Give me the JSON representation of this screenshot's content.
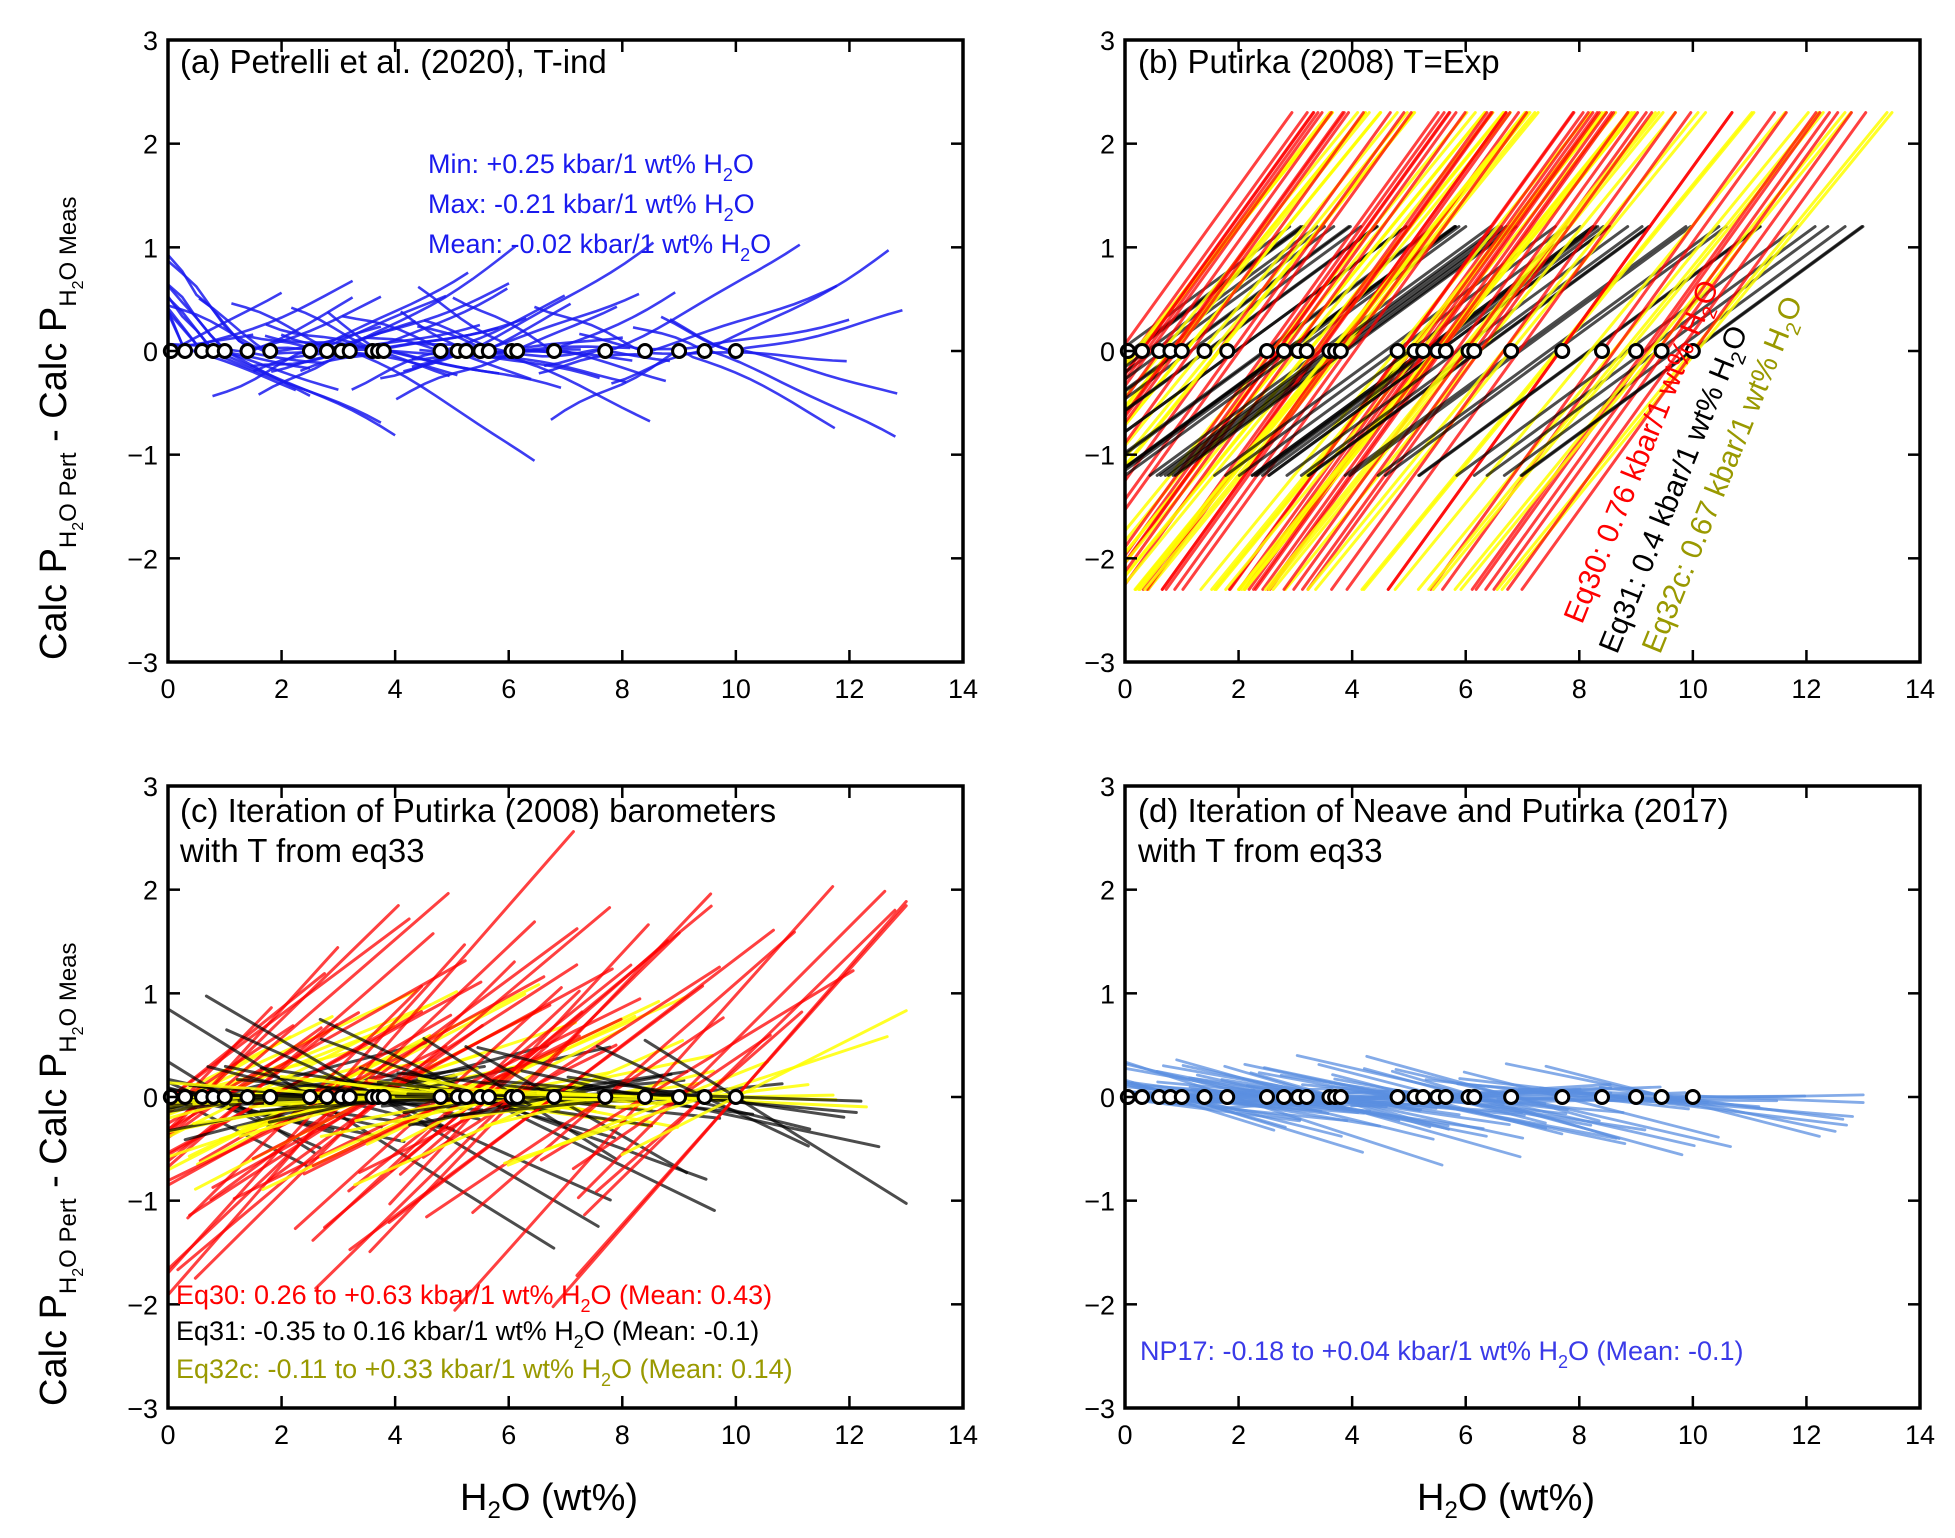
{
  "colors": {
    "eq30": "#ff0000",
    "eq31": "#000000",
    "eq32c": "#ffff00",
    "eq32c_text": "#999900",
    "petrelli": "#1a1aee",
    "np17": "#5b8fe0",
    "np17_text": "#3a3ae8"
  },
  "axes_common": {
    "xlim": [
      0,
      14
    ],
    "ylim": [
      -3,
      3
    ],
    "xticks": [
      "0",
      "2",
      "4",
      "6",
      "8",
      "10",
      "12",
      "14"
    ],
    "yticks": [
      "−3",
      "−2",
      "−1",
      "0",
      "1",
      "2",
      "3"
    ],
    "xlabel_main": "H",
    "xlabel_sub": "2",
    "xlabel_rest": "O (wt%)",
    "ylabel_p1": "Calc P",
    "ylabel_sub1": "H",
    "ylabel_sub1b": "2",
    "ylabel_sub1c": "O",
    "ylabel_sub1d": " Pert",
    "ylabel_p2": " - Calc P",
    "ylabel_sub2": "H",
    "ylabel_sub2b": "2",
    "ylabel_sub2c": "O",
    "ylabel_sub2d": " Meas"
  },
  "panels": {
    "a": {
      "title": "(a) Petrelli et al. (2020), T-ind",
      "ann1_pre": "Min: +0.25 kbar/1 wt% H",
      "ann1_sub": "2",
      "ann1_post": "O",
      "ann2_pre": "Max:  -0.21 kbar/1 wt% H",
      "ann2_sub": "2",
      "ann2_post": "O",
      "ann3_pre": "Mean: -0.02 kbar/1 wt% H",
      "ann3_sub": "2",
      "ann3_post": "O"
    },
    "b": {
      "title": "(b) Putirka (2008) T=Exp",
      "ann1_pre": "Eq30: 0.76 kbar/1 wt% H",
      "ann1_sub": "2",
      "ann1_post": "O",
      "ann2_pre": "Eq31: 0.4 kbar/1 wt% H",
      "ann2_sub": "2",
      "ann2_post": "O",
      "ann3_pre": "Eq32c: 0.67 kbar/1 wt% H",
      "ann3_sub": "2",
      "ann3_post": "O"
    },
    "c": {
      "title1": "(c) Iteration of Putirka (2008) barometers",
      "title2": "with T from eq33",
      "ann1_pre": "Eq30: 0.26 to +0.63 kbar/1 wt% H",
      "ann1_sub": "2",
      "ann1_post": "O (Mean: 0.43)",
      "ann2_pre": "Eq31: -0.35 to 0.16 kbar/1 wt% H",
      "ann2_sub": "2",
      "ann2_post": "O (Mean: -0.1)",
      "ann3_pre": "Eq32c: -0.11 to +0.33 kbar/1 wt% H",
      "ann3_sub": "2",
      "ann3_post": "O (Mean: 0.14)"
    },
    "d": {
      "title1": "(d) Iteration of Neave and Putirka (2017)",
      "title2": "with T from eq33",
      "ann1_pre": "NP17: -0.18 to +0.04 kbar/1 wt% H",
      "ann1_sub": "2",
      "ann1_post": "O (Mean: -0.1)"
    }
  },
  "chart_data": [
    {
      "type": "line",
      "panel": "a",
      "xlim": [
        0,
        14
      ],
      "ylim": [
        -3,
        3
      ],
      "measured_h2o": [
        0.05,
        0.3,
        0.6,
        0.8,
        1.0,
        1.4,
        1.8,
        2.5,
        2.8,
        3.05,
        3.2,
        3.6,
        3.7,
        3.8,
        4.8,
        5.1,
        5.25,
        5.5,
        5.65,
        6.05,
        6.15,
        6.8,
        7.7,
        8.4,
        9.0,
        9.45,
        10.0
      ],
      "series": [
        {
          "name": "Petrelli",
          "slope_min": 0.25,
          "slope_max": -0.21,
          "slope_mean": -0.02
        }
      ]
    },
    {
      "type": "line",
      "panel": "b",
      "xlim": [
        0,
        14
      ],
      "ylim": [
        -3,
        3
      ],
      "measured_h2o": [
        0.05,
        0.3,
        0.6,
        0.8,
        1.0,
        1.4,
        1.8,
        2.5,
        2.8,
        3.05,
        3.2,
        3.6,
        3.7,
        3.8,
        4.8,
        5.1,
        5.25,
        5.5,
        5.65,
        6.05,
        6.15,
        6.8,
        7.7,
        8.4,
        9.0,
        9.45,
        10.0
      ],
      "series": [
        {
          "name": "Eq30",
          "slope": 0.76
        },
        {
          "name": "Eq31",
          "slope": 0.4
        },
        {
          "name": "Eq32c",
          "slope": 0.67
        }
      ]
    },
    {
      "type": "line",
      "panel": "c",
      "xlim": [
        0,
        14
      ],
      "ylim": [
        -3,
        3
      ],
      "measured_h2o": [
        0.05,
        0.3,
        0.6,
        0.8,
        1.0,
        1.4,
        1.8,
        2.5,
        2.8,
        3.05,
        3.2,
        3.6,
        3.7,
        3.8,
        4.8,
        5.1,
        5.25,
        5.5,
        5.65,
        6.05,
        6.15,
        6.8,
        7.7,
        8.4,
        9.0,
        9.45,
        10.0
      ],
      "series": [
        {
          "name": "Eq30",
          "slope_range": [
            0.26,
            0.63
          ],
          "slope_mean": 0.43
        },
        {
          "name": "Eq31",
          "slope_range": [
            -0.35,
            0.16
          ],
          "slope_mean": -0.1
        },
        {
          "name": "Eq32c",
          "slope_range": [
            -0.11,
            0.33
          ],
          "slope_mean": 0.14
        }
      ]
    },
    {
      "type": "line",
      "panel": "d",
      "xlim": [
        0,
        14
      ],
      "ylim": [
        -3,
        3
      ],
      "measured_h2o": [
        0.05,
        0.3,
        0.6,
        0.8,
        1.0,
        1.4,
        1.8,
        2.5,
        2.8,
        3.05,
        3.2,
        3.6,
        3.7,
        3.8,
        4.8,
        5.1,
        5.25,
        5.5,
        5.65,
        6.05,
        6.15,
        6.8,
        7.7,
        8.4,
        9.0,
        9.45,
        10.0
      ],
      "series": [
        {
          "name": "NP17",
          "slope_range": [
            -0.18,
            0.04
          ],
          "slope_mean": -0.1
        }
      ]
    }
  ]
}
